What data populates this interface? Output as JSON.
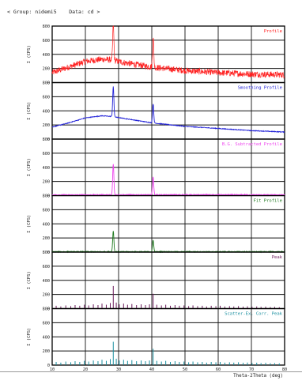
{
  "header": {
    "text": "< Group: nidemi5    Data: cd >"
  },
  "chart_data": {
    "type": "line",
    "xlabel": "Theta-2Theta (deg)",
    "xlim": [
      10,
      80
    ],
    "x_ticks": [
      "10",
      "20",
      "30",
      "40",
      "50",
      "60",
      "70",
      "80"
    ],
    "ylabel": "I (CPS)",
    "ylim": [
      0,
      800
    ],
    "y_ticks": [
      "0",
      "200",
      "400",
      "600",
      "800"
    ],
    "grid": true,
    "colors": {
      "Profile": "#ff2020",
      "Smoothing Profile": "#2222d8",
      "B.G. Subtracted Profile": "#ee44ee",
      "Fit Profile": "#1e7a1e",
      "Peak": "#6a1a5a",
      "Scatter-Ex. Corr. Peak": "#1a8fa0"
    },
    "panels": [
      {
        "name": "Profile",
        "kind": "noisy",
        "background": [
          [
            10,
            140
          ],
          [
            15,
            220
          ],
          [
            20,
            300
          ],
          [
            25,
            330
          ],
          [
            28,
            320
          ],
          [
            32,
            280
          ],
          [
            40,
            220
          ],
          [
            50,
            170
          ],
          [
            60,
            140
          ],
          [
            70,
            120
          ],
          [
            80,
            110
          ]
        ],
        "noise": 45,
        "peaks": [
          {
            "x": 28.4,
            "y": 820
          },
          {
            "x": 40.4,
            "y": 650
          }
        ]
      },
      {
        "name": "Smoothing Profile",
        "kind": "smooth",
        "background": [
          [
            10,
            170
          ],
          [
            15,
            230
          ],
          [
            20,
            300
          ],
          [
            25,
            330
          ],
          [
            28,
            320
          ],
          [
            32,
            290
          ],
          [
            40,
            230
          ],
          [
            50,
            180
          ],
          [
            60,
            150
          ],
          [
            70,
            120
          ],
          [
            80,
            100
          ]
        ],
        "noise": 8,
        "peaks": [
          {
            "x": 28.4,
            "y": 740
          },
          {
            "x": 40.4,
            "y": 500
          }
        ]
      },
      {
        "name": "B.G. Subtracted Profile",
        "kind": "flat",
        "background": [
          [
            10,
            10
          ],
          [
            80,
            10
          ]
        ],
        "noise": 12,
        "peaks": [
          {
            "x": 28.4,
            "y": 450
          },
          {
            "x": 40.4,
            "y": 270
          }
        ]
      },
      {
        "name": "Fit Profile",
        "kind": "flat",
        "background": [
          [
            10,
            5
          ],
          [
            80,
            5
          ]
        ],
        "noise": 10,
        "peaks": [
          {
            "x": 28.4,
            "y": 300
          },
          {
            "x": 40.4,
            "y": 170
          }
        ]
      },
      {
        "name": "Peak",
        "kind": "sticks",
        "sticks": [
          [
            11.2,
            40
          ],
          [
            12.6,
            30
          ],
          [
            14.1,
            45
          ],
          [
            15.6,
            35
          ],
          [
            16.9,
            50
          ],
          [
            18.3,
            40
          ],
          [
            19.7,
            55
          ],
          [
            21.0,
            45
          ],
          [
            22.4,
            60
          ],
          [
            23.8,
            50
          ],
          [
            25.0,
            70
          ],
          [
            26.3,
            55
          ],
          [
            27.5,
            80
          ],
          [
            28.4,
            320
          ],
          [
            29.3,
            85
          ],
          [
            30.2,
            60
          ],
          [
            31.5,
            70
          ],
          [
            32.7,
            55
          ],
          [
            34.0,
            65
          ],
          [
            35.4,
            50
          ],
          [
            36.8,
            60
          ],
          [
            38.1,
            50
          ],
          [
            39.3,
            60
          ],
          [
            40.4,
            210
          ],
          [
            41.5,
            55
          ],
          [
            42.9,
            45
          ],
          [
            44.2,
            55
          ],
          [
            45.6,
            40
          ],
          [
            47.0,
            50
          ],
          [
            48.3,
            40
          ],
          [
            49.7,
            45
          ],
          [
            51.1,
            35
          ],
          [
            52.4,
            45
          ],
          [
            53.8,
            35
          ],
          [
            55.2,
            40
          ],
          [
            56.5,
            30
          ],
          [
            57.9,
            40
          ],
          [
            59.3,
            35
          ],
          [
            60.6,
            40
          ],
          [
            62.0,
            30
          ],
          [
            63.4,
            35
          ],
          [
            64.7,
            30
          ],
          [
            66.1,
            35
          ],
          [
            67.5,
            28
          ],
          [
            68.8,
            32
          ],
          [
            70.2,
            25
          ],
          [
            71.6,
            30
          ],
          [
            72.9,
            25
          ],
          [
            74.3,
            28
          ],
          [
            75.7,
            22
          ],
          [
            77.0,
            25
          ],
          [
            78.4,
            20
          ]
        ]
      },
      {
        "name": "Scatter-Ex. Corr. Peak",
        "kind": "sticks",
        "sticks": [
          [
            11.2,
            45
          ],
          [
            12.6,
            35
          ],
          [
            14.1,
            50
          ],
          [
            15.6,
            40
          ],
          [
            16.9,
            55
          ],
          [
            18.3,
            45
          ],
          [
            19.7,
            60
          ],
          [
            21.0,
            50
          ],
          [
            22.4,
            65
          ],
          [
            23.8,
            55
          ],
          [
            25.0,
            75
          ],
          [
            26.3,
            60
          ],
          [
            27.5,
            85
          ],
          [
            28.4,
            330
          ],
          [
            29.3,
            90
          ],
          [
            30.2,
            65
          ],
          [
            31.5,
            75
          ],
          [
            32.7,
            60
          ],
          [
            34.0,
            70
          ],
          [
            35.4,
            55
          ],
          [
            36.8,
            65
          ],
          [
            38.1,
            55
          ],
          [
            39.3,
            65
          ],
          [
            40.4,
            230
          ],
          [
            41.5,
            60
          ],
          [
            42.9,
            50
          ],
          [
            44.2,
            60
          ],
          [
            45.6,
            45
          ],
          [
            47.0,
            55
          ],
          [
            48.3,
            45
          ],
          [
            49.7,
            50
          ],
          [
            51.1,
            40
          ],
          [
            52.4,
            50
          ],
          [
            53.8,
            40
          ],
          [
            55.2,
            45
          ],
          [
            56.5,
            35
          ],
          [
            57.9,
            45
          ],
          [
            59.3,
            40
          ],
          [
            60.6,
            45
          ],
          [
            62.0,
            35
          ],
          [
            63.4,
            40
          ],
          [
            64.7,
            35
          ],
          [
            66.1,
            40
          ],
          [
            67.5,
            32
          ],
          [
            68.8,
            36
          ],
          [
            70.2,
            30
          ],
          [
            71.6,
            34
          ],
          [
            72.9,
            28
          ],
          [
            74.3,
            32
          ],
          [
            75.7,
            26
          ],
          [
            77.0,
            28
          ],
          [
            78.4,
            24
          ]
        ]
      }
    ]
  }
}
